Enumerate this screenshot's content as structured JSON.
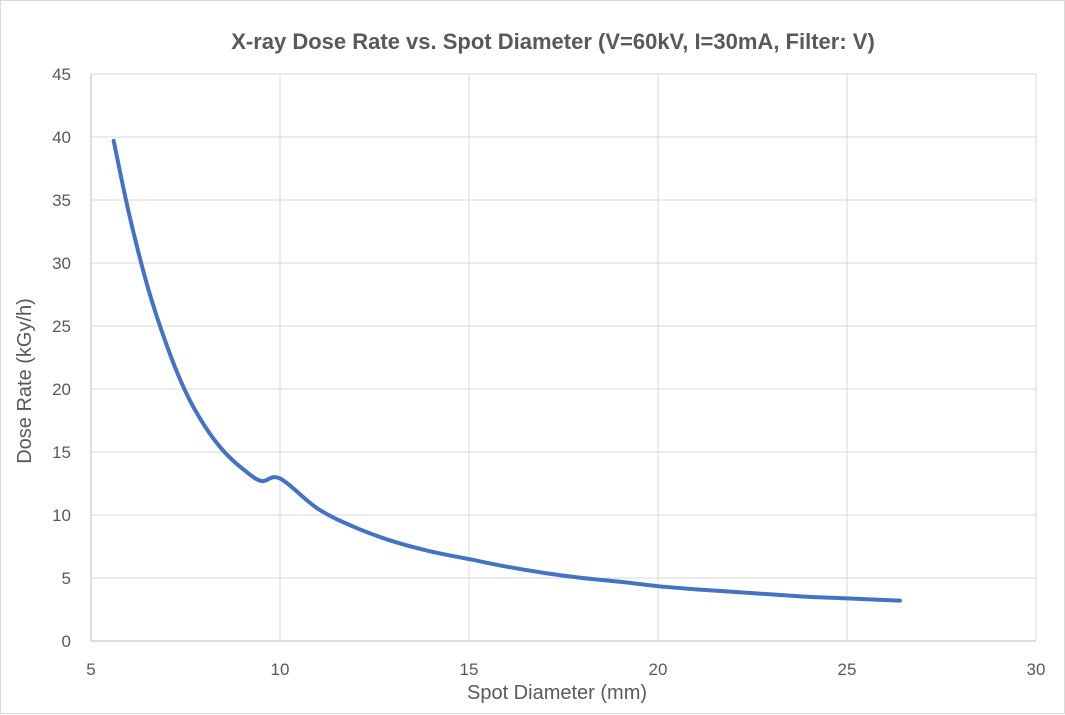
{
  "chart_data": {
    "type": "line",
    "title": "X-ray Dose Rate vs. Spot Diameter (V=60kV, I=30mA, Filter: V)",
    "xlabel": "Spot Diameter (mm)",
    "ylabel": "Dose Rate (kGy/h)",
    "xlim": [
      5,
      30
    ],
    "ylim": [
      0,
      45
    ],
    "xticks": [
      5,
      10,
      15,
      20,
      25,
      30
    ],
    "yticks": [
      0,
      5,
      10,
      15,
      20,
      25,
      30,
      35,
      40,
      45
    ],
    "grid": true,
    "legend": "none",
    "series": [
      {
        "color": "#4472c4",
        "x": [
          5.6,
          6.0,
          6.5,
          7.0,
          7.5,
          8.0,
          8.5,
          9.0,
          9.5,
          10.0,
          11.0,
          12.0,
          13.0,
          14.0,
          15.0,
          16.0,
          17.0,
          18.0,
          19.0,
          20.0,
          21.0,
          22.0,
          23.0,
          24.0,
          25.0,
          26.4
        ],
        "y": [
          39.7,
          34.0,
          28.1,
          23.5,
          19.8,
          17.1,
          15.1,
          13.7,
          12.7,
          12.9,
          10.5,
          9.0,
          7.9,
          7.1,
          6.5,
          5.9,
          5.4,
          5.0,
          4.7,
          4.35,
          4.1,
          3.9,
          3.7,
          3.5,
          3.38,
          3.2
        ]
      }
    ]
  }
}
